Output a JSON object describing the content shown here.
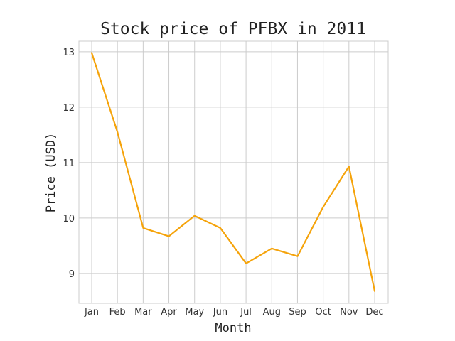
{
  "chart_data": {
    "type": "line",
    "title": "Stock price of PFBX in 2011",
    "xlabel": "Month",
    "ylabel": "Price (USD)",
    "categories": [
      "Jan",
      "Feb",
      "Mar",
      "Apr",
      "May",
      "Jun",
      "Jul",
      "Aug",
      "Sep",
      "Oct",
      "Nov",
      "Dec"
    ],
    "series": [
      {
        "values": [
          12.98,
          11.55,
          9.82,
          9.67,
          10.04,
          9.82,
          9.18,
          9.45,
          9.31,
          10.2,
          10.93,
          8.68
        ],
        "color": "#f5a30a"
      }
    ],
    "yticks": [
      9,
      10,
      11,
      12,
      13
    ],
    "ylim": [
      8.46,
      13.19
    ],
    "grid": true,
    "legend": "none"
  }
}
